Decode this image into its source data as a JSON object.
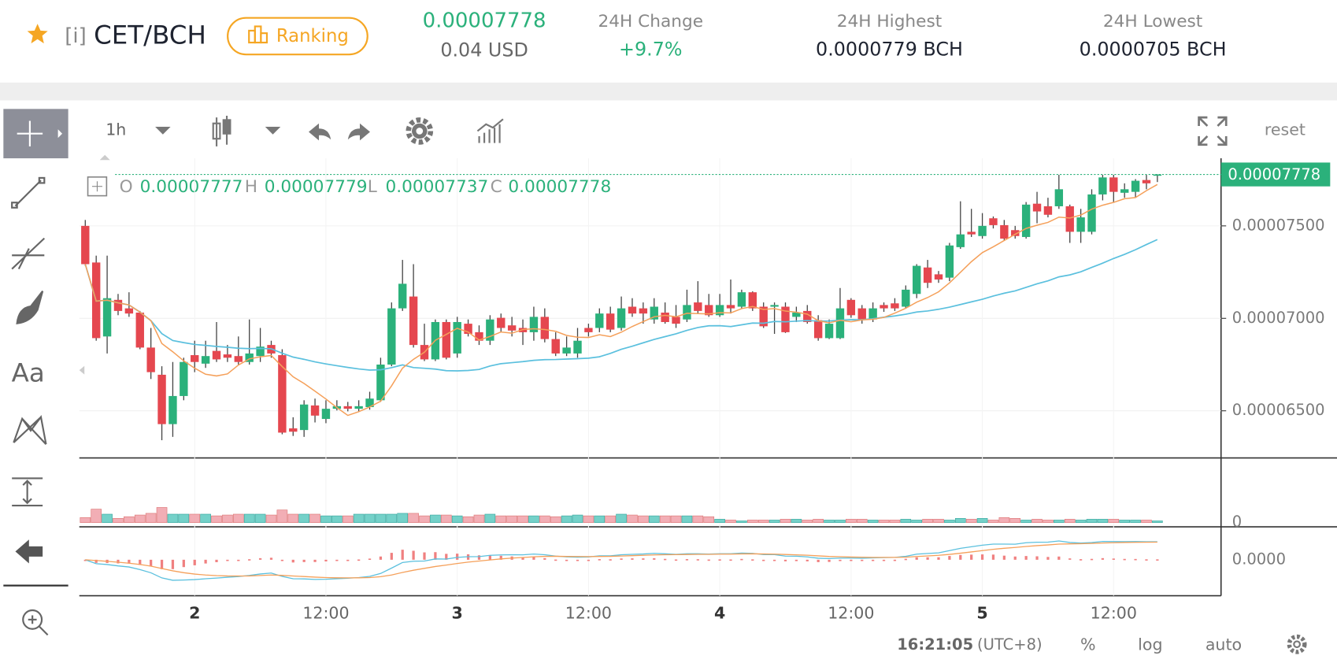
{
  "header": {
    "pair_prefix": "[i]",
    "pair": "CET/BCH",
    "ranking": "Ranking",
    "price": "0.00007778",
    "price_usd": "0.04 USD",
    "change_label": "24H Change",
    "change": "+9.7%",
    "high_label": "24H Highest",
    "high": "0.0000779 BCH",
    "low_label": "24H Lowest",
    "low": "0.0000705 BCH"
  },
  "toolbar": {
    "interval": "1h",
    "reset": "reset",
    "text_tool": "Aa"
  },
  "legend": {
    "open": "O",
    "high": "H",
    "low": "L",
    "close": "C"
  },
  "footer": {
    "time": "16:21:05",
    "zone": "(UTC+8)",
    "percent": "%",
    "log": "log",
    "auto": "auto"
  },
  "chart_data": {
    "type": "candlestick",
    "up_color": "#2bb17b",
    "down_color": "#e5474f",
    "ylim": [
      6.25e-05,
      7.87e-05
    ],
    "yticks": [
      {
        "value": 7.5e-05,
        "label": "0.00007500"
      },
      {
        "value": 7e-05,
        "label": "0.00007000"
      },
      {
        "value": 6.5e-05,
        "label": "0.00006500"
      }
    ],
    "xticks": [
      {
        "value": 10,
        "label": "2"
      },
      {
        "value": 22,
        "label": "12:00"
      },
      {
        "value": 34,
        "label": "3"
      },
      {
        "value": 46,
        "label": "12:00"
      },
      {
        "value": 58,
        "label": "4"
      },
      {
        "value": 70,
        "label": "12:00"
      },
      {
        "value": 82,
        "label": "5"
      },
      {
        "value": 94,
        "label": "12:00"
      }
    ],
    "open": [
      7.5e-05,
      7.302e-05,
      6.902e-05,
      7.1e-05,
      7.054e-05,
      7.031e-05,
      6.842e-05,
      6.695e-05,
      6.428e-05,
      6.58e-05,
      6.801e-05,
      6.755e-05,
      6.824e-05,
      6.805e-05,
      6.796e-05,
      6.764e-05,
      6.796e-05,
      6.856e-05,
      6.801e-05,
      6.405e-05,
      6.396e-05,
      6.529e-05,
      6.456e-05,
      6.511e-05,
      6.525e-05,
      6.511e-05,
      6.52e-05,
      6.557e-05,
      6.75e-05,
      7.054e-05,
      7.118e-05,
      6.856e-05,
      6.778e-05,
      6.98e-05,
      6.81e-05,
      6.971e-05,
      6.925e-05,
      6.879e-05,
      7.003e-05,
      6.962e-05,
      6.948e-05,
      6.925e-05,
      7.008e-05,
      6.888e-05,
      6.81e-05,
      6.81e-05,
      6.948e-05,
      6.948e-05,
      7.026e-05,
      6.948e-05,
      7.063e-05,
      7.054e-05,
      6.994e-05,
      7.031e-05,
      7.008e-05,
      6.994e-05,
      7.086e-05,
      7.072e-05,
      7.017e-05,
      7.072e-05,
      7.063e-05,
      7.141e-05,
      7.063e-05,
      7.063e-05,
      7.063e-05,
      7.008e-05,
      7.04e-05,
      6.99e-05,
      6.893e-05,
      6.893e-05,
      7.1e-05,
      7.054e-05,
      6.994e-05,
      7.072e-05,
      7.081e-05,
      7.063e-05,
      7.132e-05,
      7.275e-05,
      7.238e-05,
      7.22e-05,
      7.385e-05,
      7.468e-05,
      7.445e-05,
      7.541e-05,
      7.504e-05,
      7.477e-05,
      7.44e-05,
      7.62e-05,
      7.606e-05,
      7.606e-05,
      7.606e-05,
      7.468e-05,
      7.468e-05,
      7.67e-05,
      7.762e-05,
      7.679e-05,
      7.684e-05,
      7.748e-05,
      7.777e-05
    ],
    "high": [
      7.532e-05,
      7.339e-05,
      7.339e-05,
      7.132e-05,
      7.141e-05,
      7.04e-05,
      6.948e-05,
      6.741e-05,
      6.764e-05,
      6.787e-05,
      6.879e-05,
      6.879e-05,
      6.98e-05,
      6.856e-05,
      6.902e-05,
      6.994e-05,
      6.948e-05,
      6.879e-05,
      6.833e-05,
      6.465e-05,
      6.557e-05,
      6.566e-05,
      6.557e-05,
      6.557e-05,
      6.548e-05,
      6.557e-05,
      6.603e-05,
      6.787e-05,
      7.086e-05,
      7.316e-05,
      7.293e-05,
      6.971e-05,
      6.994e-05,
      6.994e-05,
      7.008e-05,
      6.994e-05,
      6.962e-05,
      7.017e-05,
      7.026e-05,
      7.008e-05,
      6.994e-05,
      7.063e-05,
      7.054e-05,
      6.925e-05,
      6.902e-05,
      6.948e-05,
      6.971e-05,
      7.054e-05,
      7.063e-05,
      7.118e-05,
      7.109e-05,
      7.086e-05,
      7.109e-05,
      7.086e-05,
      7.072e-05,
      7.155e-05,
      7.201e-05,
      7.132e-05,
      7.132e-05,
      7.21e-05,
      7.155e-05,
      7.146e-05,
      7.086e-05,
      7.086e-05,
      7.086e-05,
      7.063e-05,
      7.072e-05,
      7.017e-05,
      6.994e-05,
      7.164e-05,
      7.109e-05,
      7.072e-05,
      7.086e-05,
      7.086e-05,
      7.109e-05,
      7.178e-05,
      7.293e-05,
      7.316e-05,
      7.256e-05,
      7.408e-05,
      7.633e-05,
      7.592e-05,
      7.569e-05,
      7.551e-05,
      7.532e-05,
      7.5e-05,
      7.629e-05,
      7.684e-05,
      7.652e-05,
      7.776e-05,
      7.615e-05,
      7.592e-05,
      7.698e-05,
      7.776e-05,
      7.776e-05,
      7.73e-05,
      7.753e-05,
      7.776e-05,
      7.779e-05
    ],
    "low": [
      7.284e-05,
      6.879e-05,
      6.81e-05,
      7.017e-05,
      7.008e-05,
      6.833e-05,
      6.672e-05,
      6.341e-05,
      6.359e-05,
      6.557e-05,
      6.709e-05,
      6.732e-05,
      6.764e-05,
      6.764e-05,
      6.75e-05,
      6.75e-05,
      6.764e-05,
      6.787e-05,
      6.373e-05,
      6.364e-05,
      6.359e-05,
      6.437e-05,
      6.433e-05,
      6.502e-05,
      6.497e-05,
      6.497e-05,
      6.506e-05,
      6.548e-05,
      6.741e-05,
      7.04e-05,
      6.842e-05,
      6.769e-05,
      6.769e-05,
      6.778e-05,
      6.787e-05,
      6.902e-05,
      6.856e-05,
      6.856e-05,
      6.925e-05,
      6.902e-05,
      6.856e-05,
      6.879e-05,
      6.87e-05,
      6.796e-05,
      6.796e-05,
      6.787e-05,
      6.902e-05,
      6.925e-05,
      6.925e-05,
      6.934e-05,
      7.008e-05,
      6.971e-05,
      6.971e-05,
      6.971e-05,
      6.948e-05,
      6.98e-05,
      7.026e-05,
      7.008e-05,
      7.008e-05,
      7.026e-05,
      7.054e-05,
      7.04e-05,
      6.948e-05,
      6.916e-05,
      6.921e-05,
      6.98e-05,
      6.971e-05,
      6.879e-05,
      6.888e-05,
      6.888e-05,
      7.003e-05,
      6.971e-05,
      6.98e-05,
      7.035e-05,
      7.04e-05,
      7.054e-05,
      7.109e-05,
      7.164e-05,
      7.192e-05,
      7.201e-05,
      7.376e-05,
      7.44e-05,
      7.431e-05,
      7.486e-05,
      7.422e-05,
      7.431e-05,
      7.431e-05,
      7.514e-05,
      7.546e-05,
      7.592e-05,
      7.408e-05,
      7.408e-05,
      7.454e-05,
      7.638e-05,
      7.629e-05,
      7.652e-05,
      7.652e-05,
      7.698e-05,
      7.737e-05
    ],
    "close": [
      7.293e-05,
      6.893e-05,
      7.109e-05,
      7.04e-05,
      7.026e-05,
      6.842e-05,
      6.709e-05,
      6.428e-05,
      6.58e-05,
      6.764e-05,
      6.764e-05,
      6.796e-05,
      6.778e-05,
      6.787e-05,
      6.764e-05,
      6.81e-05,
      6.847e-05,
      6.81e-05,
      6.382e-05,
      6.387e-05,
      6.534e-05,
      6.474e-05,
      6.511e-05,
      6.525e-05,
      6.511e-05,
      6.525e-05,
      6.566e-05,
      6.75e-05,
      7.054e-05,
      7.187e-05,
      6.856e-05,
      6.778e-05,
      6.98e-05,
      6.787e-05,
      6.98e-05,
      6.916e-05,
      6.879e-05,
      6.994e-05,
      6.948e-05,
      6.934e-05,
      6.925e-05,
      7.008e-05,
      6.888e-05,
      6.81e-05,
      6.842e-05,
      6.879e-05,
      6.925e-05,
      7.026e-05,
      6.939e-05,
      7.054e-05,
      7.026e-05,
      7.026e-05,
      7.063e-05,
      6.98e-05,
      6.971e-05,
      7.072e-05,
      7.04e-05,
      7.017e-05,
      7.072e-05,
      7.054e-05,
      7.141e-05,
      7.054e-05,
      6.957e-05,
      7.072e-05,
      6.925e-05,
      7.031e-05,
      6.98e-05,
      6.893e-05,
      6.971e-05,
      7.054e-05,
      7.017e-05,
      6.994e-05,
      7.054e-05,
      7.054e-05,
      7.054e-05,
      7.155e-05,
      7.284e-05,
      7.192e-05,
      7.21e-05,
      7.394e-05,
      7.454e-05,
      7.454e-05,
      7.5e-05,
      7.504e-05,
      7.431e-05,
      7.445e-05,
      7.615e-05,
      7.578e-05,
      7.56e-05,
      7.698e-05,
      7.468e-05,
      7.546e-05,
      7.67e-05,
      7.762e-05,
      7.684e-05,
      7.698e-05,
      7.744e-05,
      7.73e-05,
      7.778e-05
    ],
    "volume": [
      6,
      16,
      10,
      5,
      7,
      9,
      11,
      18,
      10,
      10,
      10,
      10,
      8,
      9,
      10,
      10,
      10,
      9,
      15,
      10,
      10,
      10,
      8,
      8,
      8,
      10,
      10,
      10,
      10,
      11,
      11,
      8,
      9,
      9,
      8,
      7,
      9,
      10,
      8,
      8,
      8,
      8,
      8,
      7,
      8,
      9,
      8,
      8,
      8,
      10,
      9,
      8,
      8,
      8,
      8,
      8,
      8,
      7,
      4,
      3,
      2,
      3,
      3,
      3,
      4,
      4,
      3,
      4,
      3,
      3,
      4,
      4,
      3,
      3,
      3,
      4,
      3,
      4,
      4,
      3,
      5,
      4,
      5,
      3,
      6,
      5,
      3,
      4,
      3,
      3,
      4,
      3,
      4,
      4,
      4,
      3,
      3,
      3,
      2
    ],
    "volume_ylim": [
      0,
      70
    ],
    "volume_yticks": [
      0
    ],
    "macd_ylim": [
      -2.8e-06,
      2.2e-06
    ],
    "macd_yticks": [
      {
        "value": 0,
        "label": "0.0000"
      }
    ]
  }
}
